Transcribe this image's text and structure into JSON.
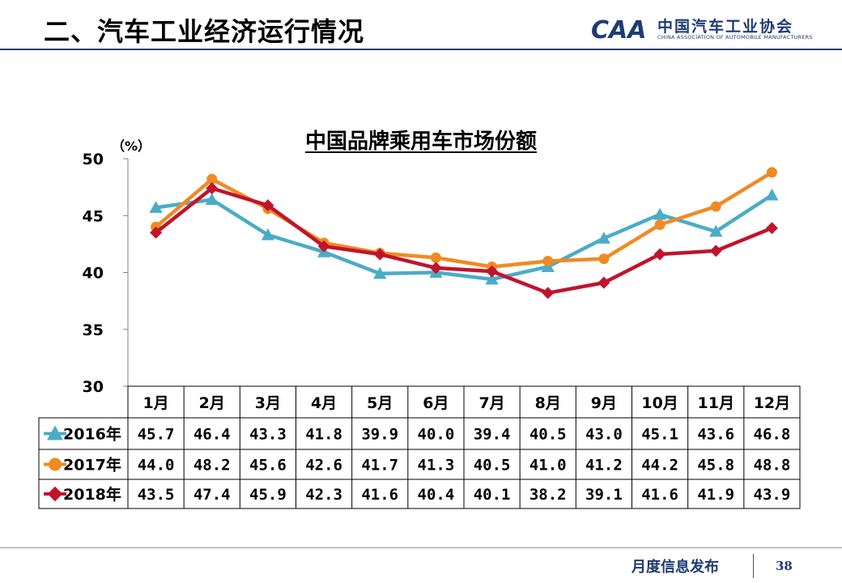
{
  "header": {
    "title": "二、汽车工业经济运行情况"
  },
  "logo": {
    "mark": "CAA",
    "cn": "中国汽车工业协会",
    "en": "CHINA ASSOCIATION OF AUTOMOBILE MANUFACTURERS"
  },
  "footer": {
    "text": "月度信息发布",
    "page": "38"
  },
  "chart_data": {
    "type": "line",
    "title": "中国品牌乘用车市场份额",
    "ylabel": "（%）",
    "ylim": [
      30,
      50
    ],
    "yticks": [
      "30",
      "35",
      "40",
      "45",
      "50"
    ],
    "categories": [
      "1月",
      "2月",
      "3月",
      "4月",
      "5月",
      "6月",
      "7月",
      "8月",
      "9月",
      "10月",
      "11月",
      "12月"
    ],
    "series": [
      {
        "name": "2016年",
        "color": "#4bacc6",
        "marker": "triangle",
        "values": [
          45.7,
          46.4,
          43.3,
          41.8,
          39.9,
          40.0,
          39.4,
          40.5,
          43.0,
          45.1,
          43.6,
          46.8
        ],
        "labels": [
          "45.7",
          "46.4",
          "43.3",
          "41.8",
          "39.9",
          "40.0",
          "39.4",
          "40.5",
          "43.0",
          "45.1",
          "43.6",
          "46.8"
        ]
      },
      {
        "name": "2017年",
        "color": "#f08a24",
        "marker": "circle",
        "values": [
          44.0,
          48.2,
          45.6,
          42.6,
          41.7,
          41.3,
          40.5,
          41.0,
          41.2,
          44.2,
          45.8,
          48.8
        ],
        "labels": [
          "44.0",
          "48.2",
          "45.6",
          "42.6",
          "41.7",
          "41.3",
          "40.5",
          "41.0",
          "41.2",
          "44.2",
          "45.8",
          "48.8"
        ]
      },
      {
        "name": "2018年",
        "color": "#c0142c",
        "marker": "diamond",
        "values": [
          43.5,
          47.4,
          45.9,
          42.3,
          41.6,
          40.4,
          40.1,
          38.2,
          39.1,
          41.6,
          41.9,
          43.9
        ],
        "labels": [
          "43.5",
          "47.4",
          "45.9",
          "42.3",
          "41.6",
          "40.4",
          "40.1",
          "38.2",
          "39.1",
          "41.6",
          "41.9",
          "43.9"
        ]
      }
    ]
  }
}
